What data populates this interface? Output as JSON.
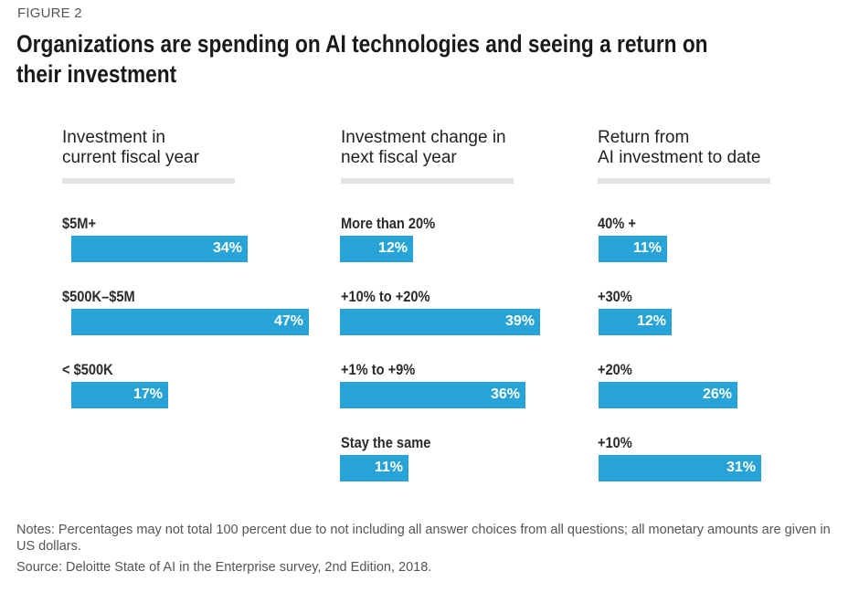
{
  "figure_label": "FIGURE 2",
  "title": "Organizations are spending on AI technologies and seeing a return on their investment",
  "title_line1": "Organizations are spending on AI technologies and seeing a return on",
  "title_line2": "their investment",
  "notes": "Notes: Percentages may not total 100 percent due to not including all answer choices from all questions; all monetary amounts are given in US dollars.",
  "source": "Source: Deloitte State of AI in the Enterprise survey, 2nd Edition, 2018.",
  "colors": {
    "bar": "#27a3d8",
    "rule": "#e2e2e2",
    "bar_text": "#ffffff"
  },
  "chart_data": [
    {
      "type": "bar",
      "orientation": "horizontal",
      "title": "Investment in\ncurrent fiscal year",
      "categories": [
        "$5M+",
        "$500K–$5M",
        "< $500K"
      ],
      "values": [
        34,
        47,
        17
      ],
      "value_labels": [
        "34%",
        "47%",
        "17%"
      ],
      "unit": "%"
    },
    {
      "type": "bar",
      "orientation": "horizontal",
      "title": "Investment change in\nnext fiscal year",
      "categories": [
        "More than 20%",
        "+10% to +20%",
        "+1% to +9%",
        "Stay the same"
      ],
      "values": [
        12,
        39,
        36,
        11
      ],
      "value_labels": [
        "12%",
        "39%",
        "36%",
        "11%"
      ],
      "unit": "%"
    },
    {
      "type": "bar",
      "orientation": "horizontal",
      "title": "Return from\nAI investment to date",
      "categories": [
        "40% +",
        "+30%",
        "+20%",
        "+10%"
      ],
      "values": [
        11,
        12,
        26,
        31
      ],
      "value_labels": [
        "11%",
        "12%",
        "26%",
        "31%"
      ],
      "unit": "%"
    }
  ]
}
